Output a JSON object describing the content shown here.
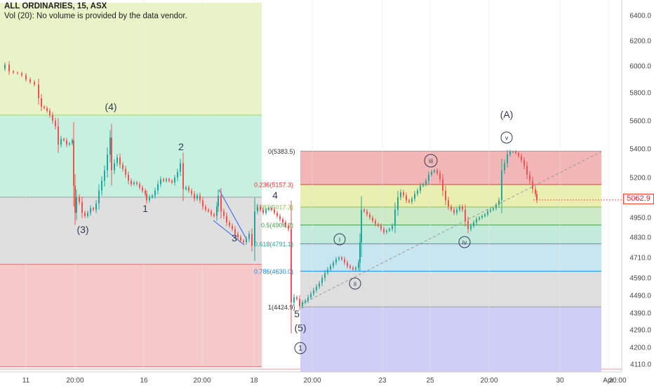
{
  "header": {
    "line1": "ALL ORDINARIES, 15, ASX",
    "line2": "Vol (20): No volume is provided by the data vendor."
  },
  "last_price": "5062.9",
  "colors": {
    "up": "#26a69a",
    "down": "#ef5350",
    "line_blue": "#2962ff",
    "wave_text": "#2f3b55"
  },
  "chart_data": {
    "type": "candlestick",
    "symbol": "ALL ORDINARIES",
    "interval": "15",
    "exchange": "ASX",
    "y_axis": {
      "ylim": [
        4080,
        6500
      ],
      "ticks": [
        "4110.0",
        "4200.0",
        "4290.0",
        "4390.0",
        "4490.0",
        "4590.0",
        "4710.0",
        "4830.0",
        "4950.0",
        "5080.0",
        "5200.0",
        "5400.0",
        "5600.0",
        "5800.0",
        "6000.0",
        "6200.0",
        "6400.0"
      ]
    },
    "x_axis": {
      "ticks": [
        "11",
        "20:00",
        "16",
        "20:00",
        "18",
        "20:00",
        "23",
        "25",
        "20:00",
        "30",
        "Apr",
        "20:00"
      ]
    },
    "close_path": [
      [
        0,
        5980
      ],
      [
        6,
        6010
      ],
      [
        12,
        5960
      ],
      [
        18,
        5950
      ],
      [
        24,
        5945
      ],
      [
        30,
        5930
      ],
      [
        36,
        5900
      ],
      [
        42,
        5880
      ],
      [
        48,
        5860
      ],
      [
        54,
        5760
      ],
      [
        58,
        5700
      ],
      [
        62,
        5690
      ],
      [
        66,
        5670
      ],
      [
        70,
        5640
      ],
      [
        74,
        5600
      ],
      [
        78,
        5560
      ],
      [
        82,
        5430
      ],
      [
        86,
        5470
      ],
      [
        90,
        5460
      ],
      [
        94,
        5430
      ],
      [
        98,
        5440
      ],
      [
        102,
        5460
      ],
      [
        104,
        5150
      ],
      [
        106,
        4980
      ],
      [
        108,
        5080
      ],
      [
        112,
        5050
      ],
      [
        116,
        4980
      ],
      [
        120,
        4960
      ],
      [
        124,
        4980
      ],
      [
        128,
        5010
      ],
      [
        132,
        5000
      ],
      [
        136,
        5040
      ],
      [
        140,
        5120
      ],
      [
        144,
        5180
      ],
      [
        148,
        5250
      ],
      [
        152,
        5360
      ],
      [
        156,
        5480
      ],
      [
        158,
        5250
      ],
      [
        162,
        5300
      ],
      [
        166,
        5340
      ],
      [
        170,
        5290
      ],
      [
        174,
        5260
      ],
      [
        178,
        5220
      ],
      [
        182,
        5180
      ],
      [
        186,
        5160
      ],
      [
        190,
        5170
      ],
      [
        194,
        5160
      ],
      [
        198,
        5140
      ],
      [
        202,
        5120
      ],
      [
        206,
        5100
      ],
      [
        208,
        5060
      ],
      [
        212,
        5080
      ],
      [
        216,
        5090
      ],
      [
        220,
        5120
      ],
      [
        224,
        5160
      ],
      [
        228,
        5190
      ],
      [
        232,
        5180
      ],
      [
        236,
        5190
      ],
      [
        240,
        5180
      ],
      [
        244,
        5170
      ],
      [
        248,
        5200
      ],
      [
        252,
        5240
      ],
      [
        256,
        5300
      ],
      [
        260,
        5130
      ],
      [
        264,
        5140
      ],
      [
        268,
        5120
      ],
      [
        272,
        5100
      ],
      [
        276,
        5070
      ],
      [
        280,
        5090
      ],
      [
        284,
        5060
      ],
      [
        288,
        5020
      ],
      [
        292,
        5000
      ],
      [
        296,
        4990
      ],
      [
        300,
        4970
      ],
      [
        304,
        4960
      ],
      [
        308,
        5020
      ],
      [
        310,
        5090
      ],
      [
        314,
        4990
      ],
      [
        318,
        4960
      ],
      [
        322,
        4920
      ],
      [
        326,
        4900
      ],
      [
        330,
        4880
      ],
      [
        334,
        4850
      ],
      [
        338,
        4830
      ],
      [
        342,
        4810
      ],
      [
        346,
        4800
      ],
      [
        350,
        4820
      ],
      [
        354,
        4850
      ],
      [
        358,
        4780
      ],
      [
        362,
        4990
      ],
      [
        366,
        5020
      ],
      [
        370,
        5000
      ],
      [
        374,
        4980
      ],
      [
        378,
        5000
      ],
      [
        382,
        5010
      ],
      [
        386,
        5000
      ],
      [
        390,
        4980
      ],
      [
        394,
        4960
      ],
      [
        398,
        4940
      ],
      [
        402,
        4920
      ],
      [
        406,
        4900
      ],
      [
        410,
        4880
      ],
      [
        414,
        4450
      ],
      [
        418,
        4480
      ],
      [
        422,
        4470
      ],
      [
        426,
        4430
      ],
      [
        430,
        4450
      ],
      [
        434,
        4460
      ],
      [
        438,
        4480
      ],
      [
        442,
        4500
      ],
      [
        446,
        4520
      ],
      [
        450,
        4540
      ],
      [
        454,
        4560
      ],
      [
        458,
        4590
      ],
      [
        462,
        4620
      ],
      [
        466,
        4640
      ],
      [
        470,
        4660
      ],
      [
        474,
        4680
      ],
      [
        478,
        4700
      ],
      [
        482,
        4710
      ],
      [
        486,
        4700
      ],
      [
        490,
        4680
      ],
      [
        494,
        4660
      ],
      [
        498,
        4650
      ],
      [
        502,
        4640
      ],
      [
        506,
        4650
      ],
      [
        510,
        4680
      ],
      [
        512,
        4800
      ],
      [
        514,
        5000
      ],
      [
        518,
        4990
      ],
      [
        522,
        4970
      ],
      [
        526,
        4950
      ],
      [
        530,
        4930
      ],
      [
        534,
        4910
      ],
      [
        538,
        4900
      ],
      [
        542,
        4880
      ],
      [
        546,
        4860
      ],
      [
        550,
        4870
      ],
      [
        554,
        4880
      ],
      [
        558,
        4900
      ],
      [
        562,
        5000
      ],
      [
        566,
        5080
      ],
      [
        570,
        5110
      ],
      [
        574,
        5090
      ],
      [
        578,
        5060
      ],
      [
        582,
        5050
      ],
      [
        586,
        5070
      ],
      [
        590,
        5100
      ],
      [
        594,
        5120
      ],
      [
        598,
        5150
      ],
      [
        602,
        5160
      ],
      [
        606,
        5180
      ],
      [
        610,
        5220
      ],
      [
        614,
        5240
      ],
      [
        618,
        5250
      ],
      [
        622,
        5230
      ],
      [
        626,
        5190
      ],
      [
        630,
        5120
      ],
      [
        634,
        5060
      ],
      [
        638,
        5020
      ],
      [
        642,
        5000
      ],
      [
        646,
        4980
      ],
      [
        650,
        5000
      ],
      [
        654,
        5020
      ],
      [
        658,
        5000
      ],
      [
        662,
        4930
      ],
      [
        666,
        4880
      ],
      [
        670,
        4900
      ],
      [
        674,
        4920
      ],
      [
        678,
        4940
      ],
      [
        682,
        4950
      ],
      [
        686,
        4960
      ],
      [
        690,
        4970
      ],
      [
        694,
        4990
      ],
      [
        698,
        5000
      ],
      [
        702,
        5010
      ],
      [
        706,
        5030
      ],
      [
        710,
        5060
      ],
      [
        714,
        5250
      ],
      [
        718,
        5300
      ],
      [
        722,
        5360
      ],
      [
        726,
        5380
      ],
      [
        730,
        5380
      ],
      [
        734,
        5370
      ],
      [
        738,
        5350
      ],
      [
        742,
        5320
      ],
      [
        746,
        5280
      ],
      [
        750,
        5220
      ],
      [
        754,
        5180
      ],
      [
        758,
        5130
      ],
      [
        762,
        5100
      ],
      [
        764,
        5063
      ]
    ],
    "fibonacci": {
      "levels": [
        {
          "ratio": "0",
          "label": "0(5383.5)",
          "price": 5383.5,
          "color": "#9e9e9e"
        },
        {
          "ratio": "0.236",
          "label": "0.236(5157.3)",
          "price": 5157.3,
          "color": "#e53935"
        },
        {
          "ratio": "0.382",
          "label": "0.382(5017.3)",
          "price": 5017.3,
          "color": "#8bc34a"
        },
        {
          "ratio": "0.5",
          "label": "0.5(4904.2)",
          "price": 4904.2,
          "color": "#43a047"
        },
        {
          "ratio": "0.618",
          "label": "0.618(4791.1)",
          "price": 4791.1,
          "color": "#26a69a"
        },
        {
          "ratio": "0.786",
          "label": "0.786(4630.0)",
          "price": 4630.0,
          "color": "#1e88e5"
        },
        {
          "ratio": "1",
          "label": "1(4424.9)",
          "price": 4424.9,
          "color": "#9e9e9e"
        }
      ],
      "zones": [
        {
          "from": 5383.5,
          "to": 5157.3,
          "color": "#f3b6b6"
        },
        {
          "from": 5157.3,
          "to": 5017.3,
          "color": "#e8efb0"
        },
        {
          "from": 5017.3,
          "to": 4904.2,
          "color": "#cdeac7"
        },
        {
          "from": 4904.2,
          "to": 4791.1,
          "color": "#c3eadd"
        },
        {
          "from": 4791.1,
          "to": 4630.0,
          "color": "#c8e6f0"
        },
        {
          "from": 4630.0,
          "to": 4424.9,
          "color": "#dedede"
        },
        {
          "from": 4424.9,
          "to": 4080,
          "color": "#cfcff5"
        }
      ]
    },
    "left_zones": [
      {
        "from": 6500,
        "to": 5640,
        "color": "#e8f4c8"
      },
      {
        "from": 5640,
        "to": 5080,
        "color": "#c6f0df"
      },
      {
        "from": 5080,
        "to": 4670,
        "color": "#dfdfdf"
      },
      {
        "from": 4670,
        "to": 4100,
        "color": "#f6c9c9"
      }
    ],
    "wave_labels": [
      {
        "text": "(4)"
      },
      {
        "text": "2"
      },
      {
        "text": "1"
      },
      {
        "text": "(3)"
      },
      {
        "text": "3"
      },
      {
        "text": "4"
      },
      {
        "text": "5"
      },
      {
        "text": "(5)"
      },
      {
        "text": "1"
      },
      {
        "text": "(A)"
      },
      {
        "text": "v"
      },
      {
        "text": "iii"
      },
      {
        "text": "i"
      },
      {
        "text": "ii"
      },
      {
        "text": "iv"
      }
    ]
  }
}
